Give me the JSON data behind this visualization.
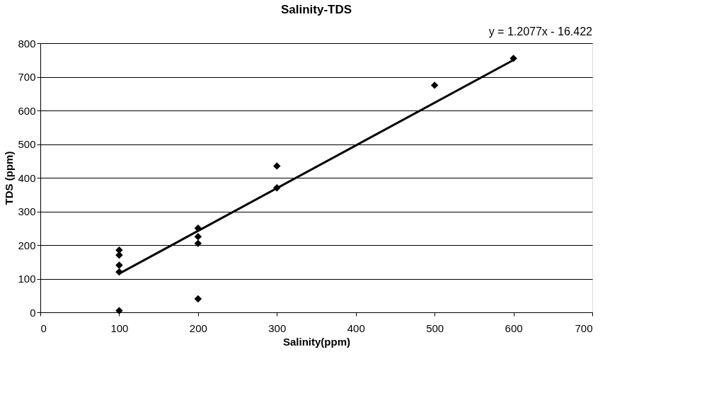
{
  "chart_data": {
    "type": "scatter",
    "title": "Salinity-TDS",
    "xlabel": "Salinity(ppm)",
    "ylabel": "TDS (ppm)",
    "annotations": [
      "y = 1.2077x - 16.422"
    ],
    "xlim": [
      0,
      700
    ],
    "xticks": [
      0,
      100,
      200,
      300,
      400,
      500,
      600,
      700
    ],
    "ylim": [
      0,
      800
    ],
    "yticks": [
      0,
      100,
      200,
      300,
      400,
      500,
      600,
      700,
      800
    ],
    "grid": "y",
    "marker": "diamond",
    "legend": false,
    "series": [
      {
        "color": "#000000",
        "x": [
          100,
          100,
          100,
          100,
          100,
          200,
          200,
          200,
          200,
          300,
          300,
          500,
          600
        ],
        "values": [
          185,
          170,
          140,
          120,
          5,
          250,
          225,
          205,
          40,
          435,
          370,
          675,
          755
        ]
      },
      {
        "type": "line",
        "marker": "none",
        "color": "#000000",
        "x": [
          100,
          600
        ],
        "values": [
          115,
          750
        ]
      }
    ]
  }
}
